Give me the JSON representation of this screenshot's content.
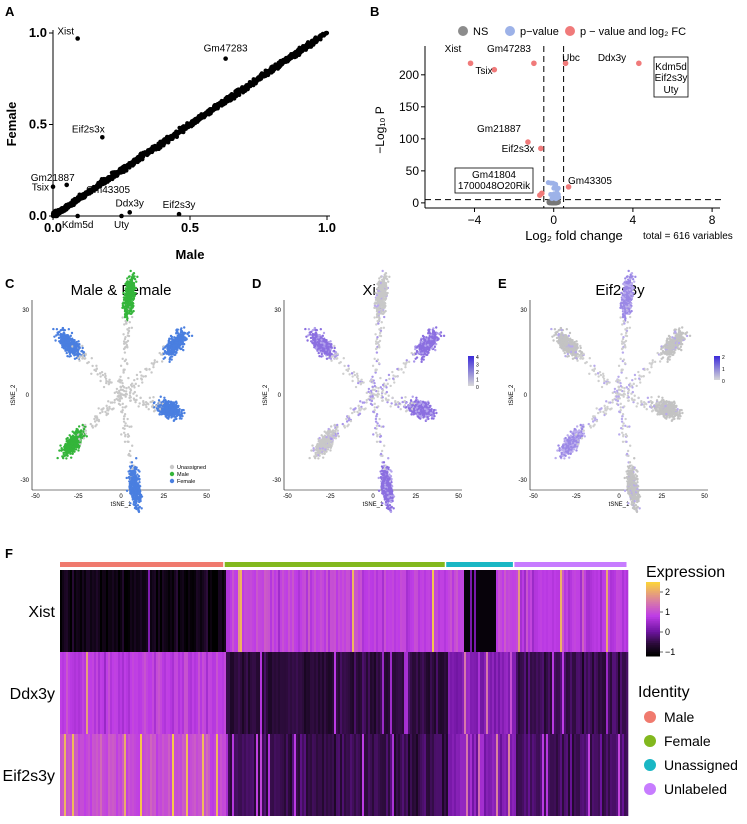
{
  "panel_labels": [
    "A",
    "B",
    "C",
    "D",
    "E",
    "F"
  ],
  "chart_data": [
    {
      "id": "A",
      "type": "scatter",
      "xlabel": "Male",
      "ylabel": "Female",
      "xlim": [
        0,
        1.0
      ],
      "ylim": [
        0,
        1.0
      ],
      "xticks": [
        "0.0",
        "0.5",
        "1.0"
      ],
      "yticks": [
        "0.0",
        "0.5",
        "1.0"
      ],
      "labeled_points": [
        {
          "label": "Xist",
          "x": 0.09,
          "y": 0.97
        },
        {
          "label": "Gm47283",
          "x": 0.63,
          "y": 0.86
        },
        {
          "label": "Eif2s3x",
          "x": 0.18,
          "y": 0.43
        },
        {
          "label": "Gm21887",
          "x": 0.05,
          "y": 0.17
        },
        {
          "label": "Tsix",
          "x": 0.0,
          "y": 0.16
        },
        {
          "label": "Gm43305",
          "x": 0.11,
          "y": 0.11
        },
        {
          "label": "Ddx3y",
          "x": 0.28,
          "y": 0.02
        },
        {
          "label": "Eif2s3y",
          "x": 0.46,
          "y": 0.01
        },
        {
          "label": "Kdm5d",
          "x": 0.09,
          "y": 0.0
        },
        {
          "label": "Uty",
          "x": 0.25,
          "y": 0.0
        }
      ]
    },
    {
      "id": "B",
      "type": "scatter",
      "legend": [
        "NS",
        "p−value",
        "p − value and log₂ FC"
      ],
      "legend_colors": [
        "#8c8c8c",
        "#9db2e8",
        "#f07a7a"
      ],
      "xlabel": "Log₂ fold change",
      "ylabel": "−Log₁₀ P",
      "caption": "total = 616 variables",
      "xlim": [
        -6.5,
        8.5
      ],
      "ylim": [
        -8,
        245
      ],
      "xticks": [
        "−4",
        "0",
        "4",
        "8"
      ],
      "yticks": [
        "0",
        "50",
        "100",
        "150",
        "200"
      ],
      "threshold_x": [
        -0.5,
        0.5
      ],
      "threshold_y": 5,
      "labeled_points": [
        {
          "label": "Xist",
          "x": -4.2,
          "y": 218,
          "color": "#f07a7a"
        },
        {
          "label": "Gm47283",
          "x": -1.0,
          "y": 218,
          "color": "#f07a7a"
        },
        {
          "label": "Tsix",
          "x": -3.0,
          "y": 208,
          "color": "#f07a7a"
        },
        {
          "label": "Ubc",
          "x": 0.6,
          "y": 218,
          "color": "#f07a7a"
        },
        {
          "label": "Ddx3y",
          "x": 4.3,
          "y": 218,
          "color": "#f07a7a"
        },
        {
          "label": "Kdm5d",
          "x": 5.5,
          "y": 218,
          "color": "#f07a7a"
        },
        {
          "label": "Eif2s3y",
          "x": 6.0,
          "y": 218,
          "color": "#f07a7a"
        },
        {
          "label": "Uty",
          "x": 6.4,
          "y": 218,
          "color": "#f07a7a"
        },
        {
          "label": "Gm21887",
          "x": -1.3,
          "y": 95,
          "color": "#f07a7a"
        },
        {
          "label": "Eif2s3x",
          "x": -0.65,
          "y": 85,
          "color": "#f07a7a"
        },
        {
          "label": "Gm43305",
          "x": 0.75,
          "y": 25,
          "color": "#f07a7a"
        },
        {
          "label": "Gm41804",
          "x": -0.6,
          "y": 15,
          "color": "#f07a7a"
        },
        {
          "label": "1700048O20Rik",
          "x": -0.7,
          "y": 12,
          "color": "#f07a7a"
        }
      ],
      "boxed_groups": [
        [
          "Kdm5d",
          "Eif2s3y",
          "Uty"
        ],
        [
          "Gm41804",
          "1700048O20Rik"
        ]
      ]
    },
    {
      "id": "C",
      "type": "scatter",
      "title": "Male & Female",
      "xlabel": "tSNE_1",
      "ylabel": "tSNE_2",
      "xticks": [
        "-50",
        "-25",
        "0",
        "25",
        "50"
      ],
      "yticks": [
        "-30",
        "0",
        "30"
      ],
      "legend": [
        {
          "name": "Unassigned",
          "color": "#c8c8c8"
        },
        {
          "name": "Male",
          "color": "#34b53a"
        },
        {
          "name": "Female",
          "color": "#4a7fe0"
        }
      ],
      "clusters": [
        {
          "name": "north",
          "color": "#34b53a",
          "cx": 5,
          "cy": 35
        },
        {
          "name": "northwest",
          "color": "#4a7fe0",
          "cx": -30,
          "cy": 18
        },
        {
          "name": "northeast",
          "color": "#4a7fe0",
          "cx": 32,
          "cy": 18
        },
        {
          "name": "southwest",
          "color": "#34b53a",
          "cx": -28,
          "cy": -17
        },
        {
          "name": "east",
          "color": "#4a7fe0",
          "cx": 28,
          "cy": -5
        },
        {
          "name": "south",
          "color": "#4a7fe0",
          "cx": 8,
          "cy": -32
        }
      ]
    },
    {
      "id": "D",
      "type": "scatter",
      "title": "Xist",
      "xlabel": "tSNE_1",
      "ylabel": "tSNE_2",
      "xticks": [
        "-50",
        "-25",
        "0",
        "25",
        "50"
      ],
      "yticks": [
        "-30",
        "0",
        "30"
      ],
      "colorbar_ticks": [
        "4",
        "3",
        "2",
        "1",
        "0"
      ],
      "high_color": "#8b6fe0"
    },
    {
      "id": "E",
      "type": "scatter",
      "title": "Eif2s3y",
      "xlabel": "tSNE_1",
      "ylabel": "tSNE_2",
      "xticks": [
        "-50",
        "-25",
        "0",
        "25",
        "50"
      ],
      "yticks": [
        "-30",
        "0",
        "30"
      ],
      "colorbar_ticks": [
        "2",
        "1",
        "0"
      ],
      "high_color": "#9b88e6"
    },
    {
      "id": "F",
      "type": "heatmap",
      "rows": [
        "Xist",
        "Ddx3y",
        "Eif2s3y"
      ],
      "groups": [
        {
          "name": "Male",
          "color": "#f07a6e",
          "fraction": 0.29
        },
        {
          "name": "Female",
          "color": "#82b81e",
          "fraction": 0.39
        },
        {
          "name": "Unassigned",
          "color": "#1ab7c4",
          "fraction": 0.12
        },
        {
          "name": "Unlabeled",
          "color": "#c77cff",
          "fraction": 0.2
        }
      ],
      "group_levels": {
        "Xist": [
          -1.0,
          0.9,
          0.3,
          0.8
        ],
        "Ddx3y": [
          0.8,
          -0.6,
          0.2,
          -0.5
        ],
        "Eif2s3y": [
          1.0,
          -0.5,
          0.3,
          -0.4
        ]
      },
      "colorbar_title": "Expression",
      "colorbar_ticks": [
        "2",
        "1",
        "0",
        "−1"
      ],
      "colorbar_range": [
        -1.2,
        2.5
      ],
      "legend_title": "Identity"
    }
  ]
}
